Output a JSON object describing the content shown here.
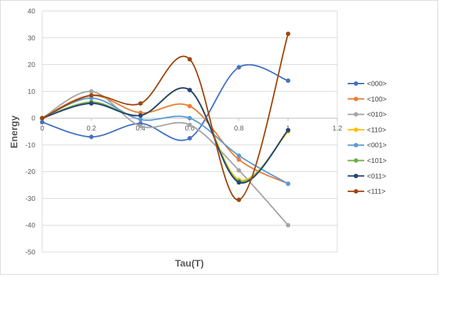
{
  "chart_data": {
    "type": "line",
    "title": "",
    "xlabel": "Tau(T)",
    "ylabel": "Energy",
    "xlim": [
      0,
      1.2
    ],
    "ylim": [
      -50,
      40
    ],
    "x_ticks": [
      "0",
      "0.2",
      "0.4",
      "0.6",
      "0.8",
      "1",
      "1.2"
    ],
    "y_ticks": [
      "40",
      "30",
      "20",
      "10",
      "0",
      "-10",
      "-20",
      "-30",
      "-40",
      "-50"
    ],
    "grid": "horizontal",
    "smooth": true,
    "legend_position": "right",
    "x": [
      0,
      0.2,
      0.4,
      0.6,
      0.8,
      1.0
    ],
    "series": [
      {
        "name": "<000>",
        "color": "#4472C4",
        "values": [
          -1.5,
          -7,
          -2,
          -7.5,
          19,
          14
        ]
      },
      {
        "name": "<100>",
        "color": "#ED7D31",
        "values": [
          0,
          8.5,
          2,
          4.5,
          -15.5,
          -24.5
        ]
      },
      {
        "name": "<010>",
        "color": "#A5A5A5",
        "values": [
          0,
          10,
          -3,
          -2.5,
          -19.5,
          -40
        ]
      },
      {
        "name": "<110>",
        "color": "#FFC000",
        "values": [
          0,
          6,
          1,
          10.5,
          -23,
          -5
        ]
      },
      {
        "name": "<001>",
        "color": "#5B9BD5",
        "values": [
          0,
          7.5,
          -0.5,
          0,
          -14,
          -24.5
        ]
      },
      {
        "name": "<101>",
        "color": "#70AD47",
        "values": [
          0,
          6,
          1,
          10.5,
          -23.5,
          -4.5
        ]
      },
      {
        "name": "<011>",
        "color": "#264478",
        "values": [
          0,
          5.5,
          1,
          10.5,
          -24,
          -4.5
        ]
      },
      {
        "name": "<111>",
        "color": "#9E480E",
        "values": [
          0,
          8.5,
          5.5,
          22,
          -30.5,
          31.5
        ]
      }
    ]
  }
}
